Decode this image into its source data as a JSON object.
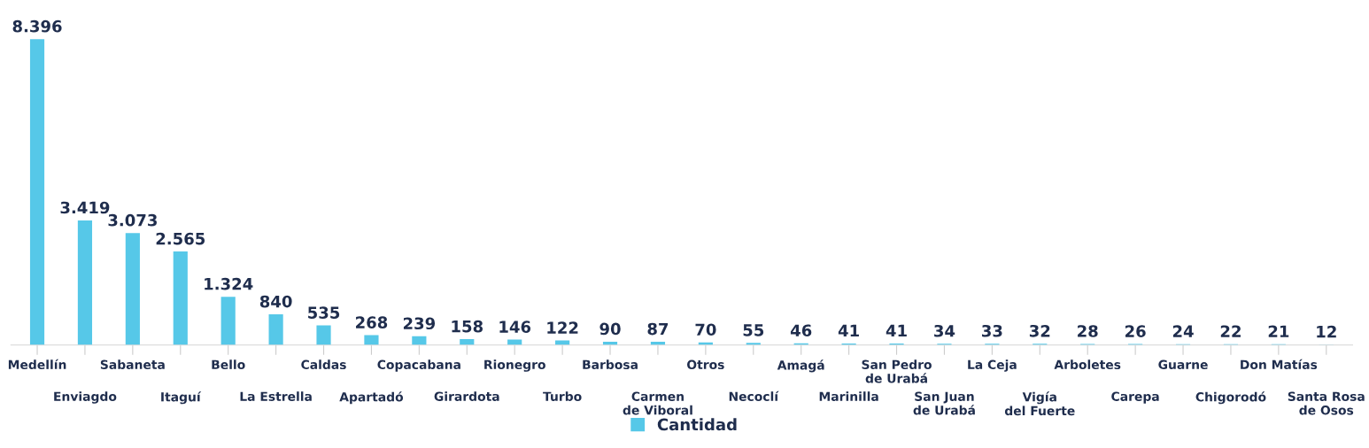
{
  "chart_data": {
    "type": "bar",
    "categories": [
      "Medellín",
      "Enviagdo",
      "Sabaneta",
      "Itaguí",
      "Bello",
      "La Estrella",
      "Caldas",
      "Apartadó",
      "Copacabana",
      "Girardota",
      "Rionegro",
      "Turbo",
      "Barbosa",
      "Carmen\nde Viboral",
      "Otros",
      "Necoclí",
      "Amagá",
      "Marinilla",
      "San Pedro\nde Urabá",
      "San Juan\nde Urabá",
      "La Ceja",
      "Vigía\ndel Fuerte",
      "Arboletes",
      "Carepa",
      "Guarne",
      "Chigorodó",
      "Don Matías",
      "Santa Rosa\nde Osos"
    ],
    "series": [
      {
        "name": "Cantidad",
        "color": "#56c8e8",
        "values": [
          8396,
          3419,
          3073,
          2565,
          1324,
          840,
          535,
          268,
          239,
          158,
          146,
          122,
          90,
          87,
          70,
          55,
          46,
          41,
          41,
          34,
          33,
          32,
          28,
          26,
          24,
          22,
          21,
          12
        ],
        "value_labels": [
          "8.396",
          "3.419",
          "3.073",
          "2.565",
          "1.324",
          "840",
          "535",
          "268",
          "239",
          "158",
          "146",
          "122",
          "90",
          "87",
          "70",
          "55",
          "46",
          "41",
          "41",
          "34",
          "33",
          "32",
          "28",
          "26",
          "24",
          "22",
          "21",
          "12"
        ]
      }
    ],
    "legend": "bottom"
  }
}
